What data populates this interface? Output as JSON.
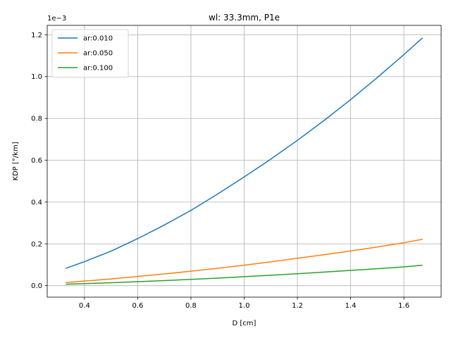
{
  "chart_data": {
    "type": "line",
    "title": "wl: 33.3mm, P1e",
    "xlabel": "D [cm]",
    "ylabel": "KDP [°/km]",
    "y_offset_text": "1e−3",
    "xlim": [
      0.26,
      1.74
    ],
    "ylim": [
      -0.055,
      1.245
    ],
    "xticks": [
      0.4,
      0.6,
      0.8,
      1.0,
      1.2,
      1.4,
      1.6
    ],
    "xtick_labels": [
      "0.4",
      "0.6",
      "0.8",
      "1.0",
      "1.2",
      "1.4",
      "1.6"
    ],
    "yticks": [
      0.0,
      0.2,
      0.4,
      0.6,
      0.8,
      1.0,
      1.2
    ],
    "ytick_labels": [
      "0.0",
      "0.2",
      "0.4",
      "0.6",
      "0.8",
      "1.0",
      "1.2"
    ],
    "grid": true,
    "legend_position": "top-left",
    "x": [
      0.33,
      0.4,
      0.5,
      0.6,
      0.7,
      0.8,
      0.9,
      1.0,
      1.1,
      1.2,
      1.3,
      1.4,
      1.5,
      1.6,
      1.67
    ],
    "series": [
      {
        "name": "ar:0.010",
        "color": "#1f77b4",
        "values": [
          0.083,
          0.115,
          0.165,
          0.225,
          0.29,
          0.36,
          0.438,
          0.52,
          0.605,
          0.695,
          0.79,
          0.89,
          0.995,
          1.105,
          1.185
        ]
      },
      {
        "name": "ar:0.050",
        "color": "#ff7f0e",
        "values": [
          0.015,
          0.022,
          0.032,
          0.044,
          0.056,
          0.069,
          0.083,
          0.098,
          0.114,
          0.131,
          0.148,
          0.166,
          0.185,
          0.205,
          0.222
        ]
      },
      {
        "name": "ar:0.100",
        "color": "#2ca02c",
        "values": [
          0.007,
          0.01,
          0.014,
          0.019,
          0.024,
          0.03,
          0.036,
          0.043,
          0.05,
          0.057,
          0.065,
          0.073,
          0.081,
          0.09,
          0.098
        ]
      }
    ]
  }
}
